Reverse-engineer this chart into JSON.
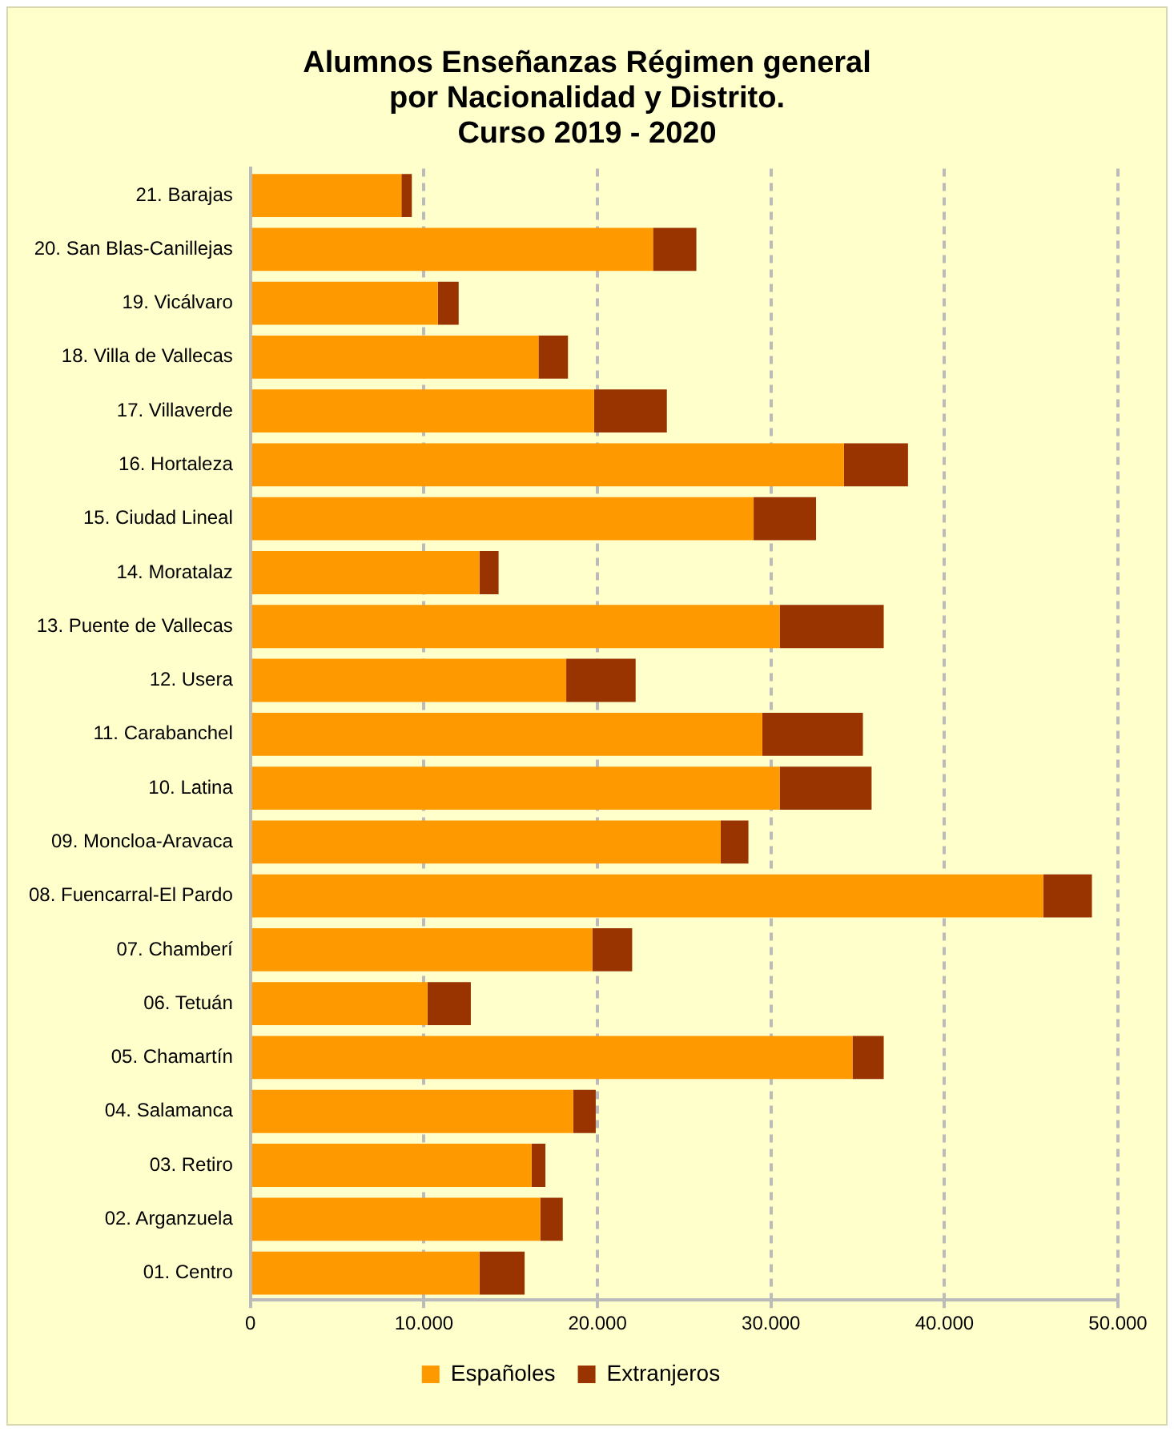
{
  "chart_data": {
    "type": "bar",
    "orientation": "horizontal",
    "stacked": true,
    "title": "Alumnos Enseñanzas Régimen general\npor Nacionalidad y Distrito.\nCurso 2019 - 2020",
    "categories": [
      "21. Barajas",
      "20. San Blas-Canillejas",
      "19. Vicálvaro",
      "18. Villa de Vallecas",
      "17. Villaverde",
      "16. Hortaleza",
      "15. Ciudad Lineal",
      "14. Moratalaz",
      "13. Puente de Vallecas",
      "12. Usera",
      "11. Carabanchel",
      "10. Latina",
      "09. Moncloa-Aravaca",
      "08. Fuencarral-El Pardo",
      "07. Chamberí",
      "06. Tetuán",
      "05. Chamartín",
      "04. Salamanca",
      "03. Retiro",
      "02. Arganzuela",
      "01. Centro"
    ],
    "series": [
      {
        "name": "Españoles",
        "color": "#ff9900",
        "values": [
          8700,
          23200,
          10800,
          16600,
          19800,
          34200,
          29000,
          13200,
          30500,
          18200,
          29500,
          30500,
          27100,
          45700,
          19700,
          10200,
          34700,
          18600,
          16200,
          16700,
          13200
        ]
      },
      {
        "name": "Extranjeros",
        "color": "#993300",
        "values": [
          600,
          2500,
          1200,
          1700,
          4200,
          3700,
          3600,
          1100,
          6000,
          4000,
          5800,
          5300,
          1600,
          2800,
          2300,
          2500,
          1800,
          1300,
          800,
          1300,
          2600
        ]
      }
    ],
    "xlim": [
      0,
      50000
    ],
    "xticks": [
      0,
      {
        "value": 10000,
        "label": "10.000"
      },
      {
        "value": 20000,
        "label": "20.000"
      },
      {
        "value": 30000,
        "label": "30.000"
      },
      {
        "value": 40000,
        "label": "40.000"
      },
      {
        "value": 50000,
        "label": "50.000"
      }
    ],
    "grid": "x",
    "line_style": "dashed",
    "legend": "bottom"
  }
}
